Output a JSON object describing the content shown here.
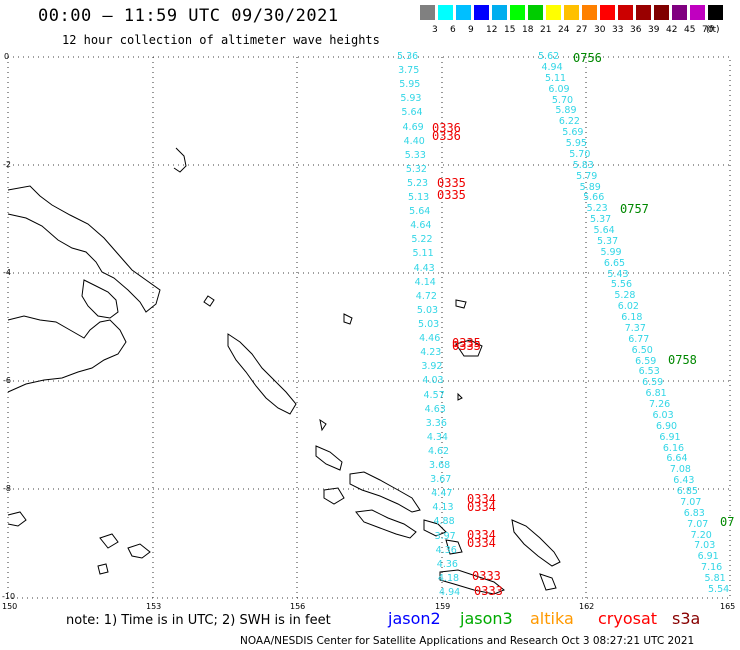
{
  "header": {
    "title": "00:00 – 11:59 UTC 09/30/2021",
    "subtitle": "12 hour collection of altimeter wave heights"
  },
  "legend": {
    "colors": [
      "#808080",
      "#00ffff",
      "#00bfff",
      "#0000ff",
      "#00aeef",
      "#00ff00",
      "#00cc00",
      "#ffff00",
      "#ffc000",
      "#ff8000",
      "#ff0000",
      "#cc0000",
      "#990000",
      "#800000",
      "#800080",
      "#c000c0",
      "#000000"
    ],
    "labels": [
      "3",
      "6",
      "9",
      "12",
      "15",
      "18",
      "21",
      "24",
      "27",
      "30",
      "33",
      "36",
      "39",
      "42",
      "45",
      "70",
      "(ft)"
    ]
  },
  "axes": {
    "lat_labels": [
      "0",
      "-2",
      "-4",
      "-6",
      "-8",
      "-10"
    ],
    "lon_labels": [
      "150",
      "153",
      "156",
      "159",
      "162",
      "165"
    ]
  },
  "tracks": {
    "west_heights": [
      "5.36",
      "3.75",
      "5.95",
      "5.93",
      "5.64",
      "4.69",
      "4.40",
      "5.33",
      "5.32",
      "5.23",
      "5.13",
      "5.64",
      "4.64",
      "5.22",
      "5.11",
      "4.43",
      "4.14",
      "4.72",
      "5.03",
      "5.03",
      "4.46",
      "4.23",
      "3.92",
      "4.03",
      "4.57",
      "4.63",
      "3.36",
      "4.34",
      "4.62",
      "3.68",
      "3.67",
      "4.47",
      "4.13",
      "4.88",
      "3.97",
      "4.36",
      "4.36",
      "4.18",
      "4.94"
    ],
    "west_times": [
      "0336",
      "0336",
      "0335",
      "0335",
      "0335",
      "0335",
      "0334",
      "0334",
      "0334",
      "0334",
      "0333",
      "0333"
    ],
    "east_heights": [
      "5.62",
      "4.94",
      "5.11",
      "6.09",
      "5.70",
      "5.89",
      "6.22",
      "5.69",
      "5.95",
      "5.70",
      "5.83",
      "5.79",
      "5.89",
      "5.66",
      "5.23",
      "5.37",
      "5.64",
      "5.37",
      "5.99",
      "6.65",
      "5.43",
      "5.56",
      "5.28",
      "6.02",
      "6.18",
      "7.37",
      "6.77",
      "6.50",
      "6.59",
      "6.53",
      "6.59",
      "6.81",
      "7.26",
      "6.03",
      "6.90",
      "6.91",
      "6.16",
      "6.64",
      "7.08",
      "6.43",
      "6.85",
      "7.07",
      "6.83",
      "7.07",
      "7.20",
      "7.03",
      "6.91",
      "7.16",
      "5.81",
      "5.54"
    ],
    "east_times": [
      "0756",
      "0757",
      "0758",
      "07"
    ]
  },
  "notes": {
    "note": "note:  1) Time is in UTC;  2) SWH is in feet",
    "footer": "NOAA/NESDIS Center for Satellite Applications and Research    Oct  3 08:27:21 UTC 2021"
  },
  "satellites": [
    {
      "name": "jason2",
      "color": "#0000ff"
    },
    {
      "name": "jason3",
      "color": "#00aa00"
    },
    {
      "name": "altika",
      "color": "#ff9900"
    },
    {
      "name": "cryosat",
      "color": "#ff0000"
    },
    {
      "name": "s3a",
      "color": "#880000"
    }
  ]
}
